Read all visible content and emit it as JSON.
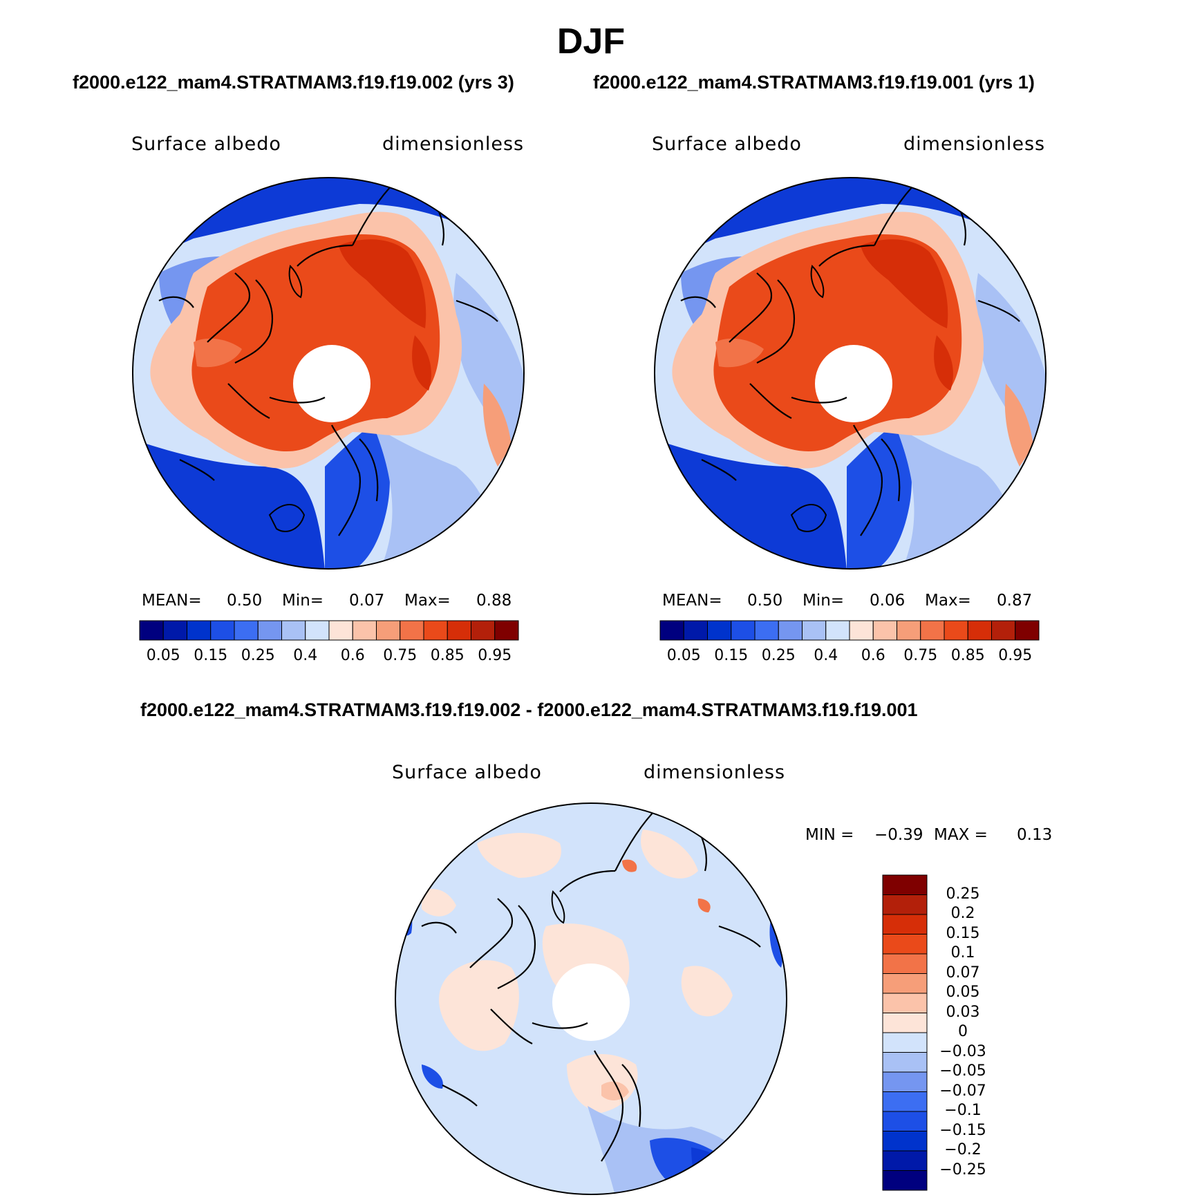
{
  "title": "DJF",
  "case_titles": {
    "left": "f2000.e122_mam4.STRATMAM3.f19.f19.002 (yrs 3)",
    "right": "f2000.e122_mam4.STRATMAM3.f19.f19.001 (yrs 1)",
    "diff": "f2000.e122_mam4.STRATMAM3.f19.f19.002 - f2000.e122_mam4.STRATMAM3.f19.f19.001"
  },
  "panels": [
    {
      "id": "case1",
      "variable": "Surface albedo",
      "units": "dimensionless",
      "stats": {
        "mean_label": "MEAN=",
        "mean": "0.50",
        "min_label": "Min=",
        "min": "0.07",
        "max_label": "Max=",
        "max": "0.88"
      }
    },
    {
      "id": "case2",
      "variable": "Surface albedo",
      "units": "dimensionless",
      "stats": {
        "mean_label": "MEAN=",
        "mean": "0.50",
        "min_label": "Min=",
        "min": "0.06",
        "max_label": "Max=",
        "max": "0.87"
      }
    },
    {
      "id": "diff",
      "variable": "Surface albedo",
      "units": "dimensionless",
      "stats": {
        "min_label": "MIN =",
        "min": "−0.39",
        "max_label": "MAX =",
        "max": "0.13"
      }
    }
  ],
  "colorbars": {
    "field": {
      "colors": [
        "#00007f",
        "#0019a9",
        "#0033cc",
        "#1d4fe6",
        "#3c6ef2",
        "#7596f0",
        "#a9c1f5",
        "#d2e3fb",
        "#fde4d8",
        "#fbc3aa",
        "#f69e79",
        "#f27348",
        "#ea4a1a",
        "#d62e08",
        "#b3200a",
        "#7f0000"
      ],
      "labels": [
        "0.05",
        "0.15",
        "0.25",
        "0.4",
        "0.6",
        "0.75",
        "0.85",
        "0.95"
      ]
    },
    "diff": {
      "colors": [
        "#7f0000",
        "#b3200a",
        "#d62e08",
        "#ea4a1a",
        "#f27348",
        "#f69e79",
        "#fbc3aa",
        "#fde4d8",
        "#d2e3fb",
        "#a9c1f5",
        "#7596f0",
        "#3c6ef2",
        "#1d4fe6",
        "#0033cc",
        "#0019a9",
        "#00007f"
      ],
      "labels": [
        "0.25",
        "0.2",
        "0.15",
        "0.1",
        "0.07",
        "0.05",
        "0.03",
        "0",
        "−0.03",
        "−0.05",
        "−0.07",
        "−0.1",
        "−0.15",
        "−0.2",
        "−0.25"
      ]
    }
  },
  "map_colors": {
    "ocean_low": "#0d3ad6",
    "ocean_mid": "#3c6ef2",
    "ice_high": "#ea4a1a",
    "ice_peak": "#d62e08",
    "pale_blue": "#d2e3fb",
    "pale_red": "#fde4d8",
    "coast": "#000000"
  }
}
